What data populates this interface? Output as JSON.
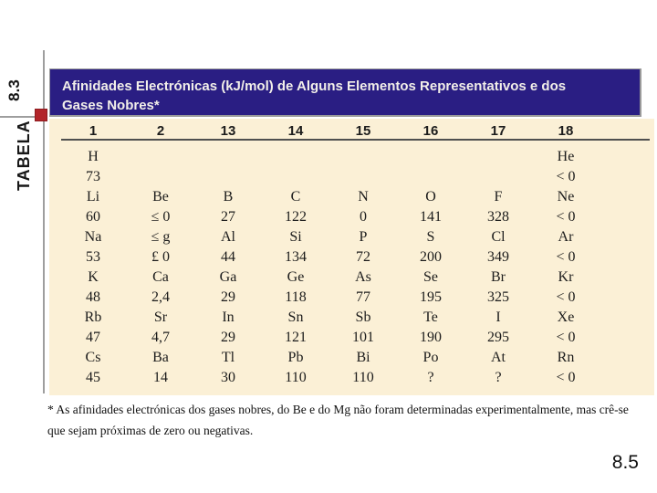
{
  "slide": {
    "page_number": "8.5"
  },
  "rail": {
    "label": "TABELA",
    "number": "8.3"
  },
  "header": {
    "title_lines": [
      "Afinidades Electrónicas (kJ/mol) de Alguns Elementos Representativos e dos",
      "Gases Nobres*"
    ]
  },
  "table": {
    "column_headers": [
      "1",
      "2",
      "13",
      "14",
      "15",
      "16",
      "17",
      "18"
    ],
    "rows": [
      [
        "H",
        "",
        "",
        "",
        "",
        "",
        "",
        "He"
      ],
      [
        "73",
        "",
        "",
        "",
        "",
        "",
        "",
        "< 0"
      ],
      [
        "Li",
        "Be",
        "B",
        "C",
        "N",
        "O",
        "F",
        "Ne"
      ],
      [
        "60",
        "≤ 0",
        "27",
        "122",
        "0",
        "141",
        "328",
        "< 0"
      ],
      [
        "Na",
        "≤ g",
        "Al",
        "Si",
        "P",
        "S",
        "Cl",
        "Ar"
      ],
      [
        "53",
        "£ 0",
        "44",
        "134",
        "72",
        "200",
        "349",
        "< 0"
      ],
      [
        "K",
        "Ca",
        "Ga",
        "Ge",
        "As",
        "Se",
        "Br",
        "Kr"
      ],
      [
        "48",
        "2,4",
        "29",
        "118",
        "77",
        "195",
        "325",
        "< 0"
      ],
      [
        "Rb",
        "Sr",
        "In",
        "Sn",
        "Sb",
        "Te",
        "I",
        "Xe"
      ],
      [
        "47",
        "4,7",
        "29",
        "121",
        "101",
        "190",
        "295",
        "< 0"
      ],
      [
        "Cs",
        "Ba",
        "Tl",
        "Pb",
        "Bi",
        "Po",
        "At",
        "Rn"
      ],
      [
        "45",
        "14",
        "30",
        "110",
        "110",
        "?",
        "?",
        "< 0"
      ]
    ],
    "footnote_lines": [
      "* As afinidades electrónicas dos gases nobres, do Be e do Mg não foram determinadas experimentalmente, mas crê-se",
      "que sejam próximas de zero ou negativas."
    ]
  },
  "colors": {
    "header_bg": "#2a1e83",
    "table_bg": "#fbf0d6",
    "accent_red": "#b2252a",
    "rail_line_gray": "#9e9e9e",
    "rule_gray": "#4f4f4f"
  }
}
